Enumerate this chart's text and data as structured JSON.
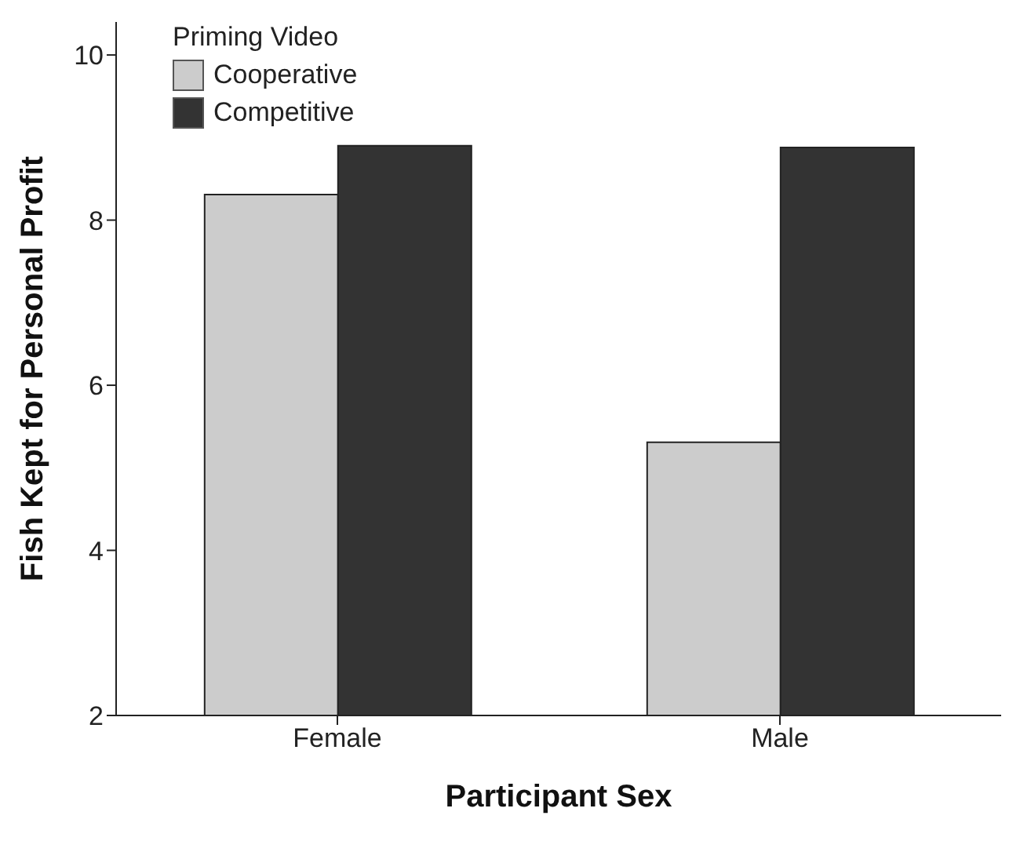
{
  "chart_data": {
    "type": "bar",
    "xlabel": "Participant Sex",
    "ylabel": "Fish Kept for Personal Profit",
    "legend_title": "Priming Video",
    "categories": [
      "Female",
      "Male"
    ],
    "series": [
      {
        "name": "Cooperative",
        "color": "#cccccc",
        "values": [
          8.31,
          5.31
        ]
      },
      {
        "name": "Competitive",
        "color": "#333333",
        "values": [
          8.9,
          8.88
        ]
      }
    ],
    "ylim": [
      2,
      10.4
    ],
    "yticks": [
      2,
      4,
      6,
      8,
      10
    ],
    "grid": false,
    "legend": "top left"
  }
}
